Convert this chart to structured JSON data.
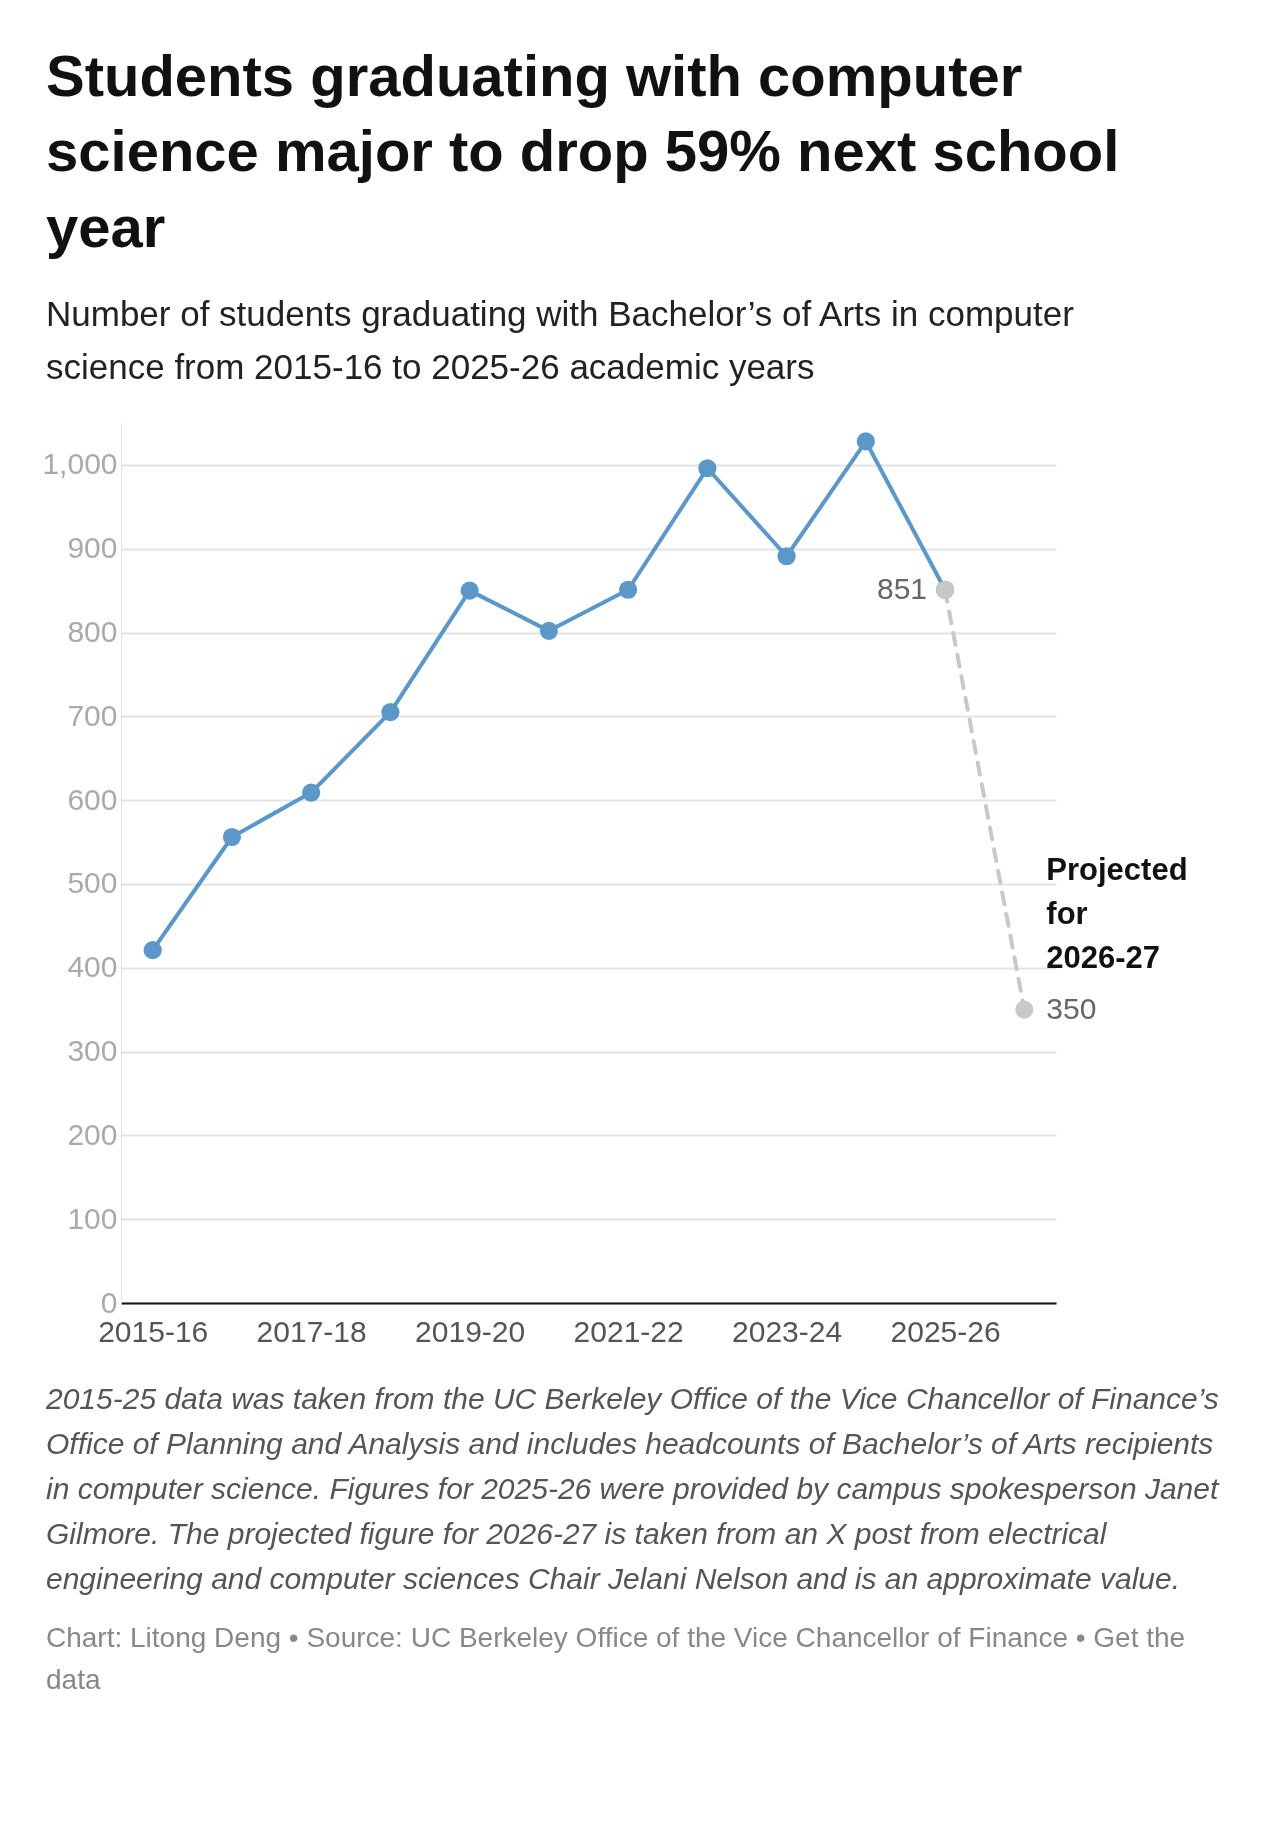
{
  "chart_data": {
    "type": "line",
    "title": "Students graduating with computer science major to drop 59% next school year",
    "subtitle": "Number of students graduating with Bachelor’s of Arts in computer science from 2015-16 to 2025-26 academic years",
    "categories": [
      "2015-16",
      null,
      "2017-18",
      null,
      "2019-20",
      null,
      "2021-22",
      null,
      "2023-24",
      null,
      "2025-26",
      null
    ],
    "series": [
      {
        "color": "#5b97c9",
        "line_style": "solid",
        "values": [
          421,
          556,
          609,
          705,
          850,
          802,
          851,
          996,
          891,
          1028,
          851,
          null
        ],
        "value_labels": [
          null,
          null,
          null,
          null,
          null,
          null,
          null,
          null,
          null,
          null,
          "851",
          null
        ]
      },
      {
        "name": "Projected for 2026-27",
        "color": "#c8c8c8",
        "line_style": "dashed",
        "values": [
          null,
          null,
          null,
          null,
          null,
          null,
          null,
          null,
          null,
          null,
          851,
          350
        ],
        "value_labels": [
          null,
          null,
          null,
          null,
          null,
          null,
          null,
          null,
          null,
          null,
          null,
          "350"
        ]
      }
    ],
    "ylim": [
      0,
      1050
    ],
    "yticks": [
      0,
      100,
      200,
      300,
      400,
      500,
      600,
      700,
      800,
      900,
      {
        "value": 1000,
        "label": "1,000"
      }
    ],
    "grid": "y",
    "marker": "circle",
    "legend": false,
    "annotations": [
      "2015-25 data was taken from the UC Berkeley Office of the Vice Chancellor of Finance’s Office of Planning and Analysis and includes headcounts of Bachelor’s of Arts recipients in computer science. Figures for 2025-26 were provided by campus spokesperson Janet Gilmore. The projected figure for 2026-27 is taken from an X post from electrical engineering and computer sciences Chair Jelani Nelson and is an approximate value.",
      "Chart: Litong Deng • Source: UC Berkeley Office of the Vice Chancellor of Finance • Get the data"
    ]
  }
}
